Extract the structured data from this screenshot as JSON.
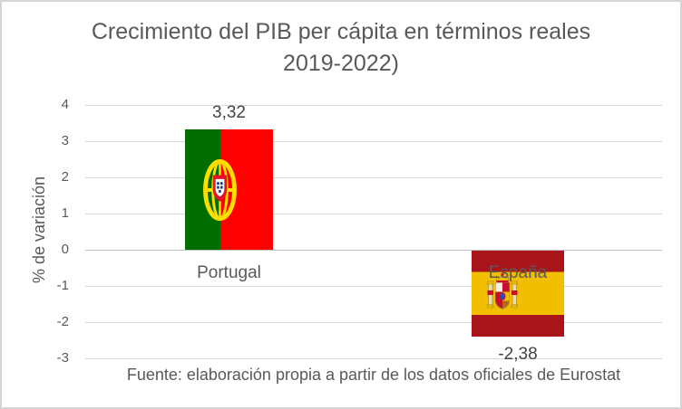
{
  "chart_data": {
    "type": "bar",
    "title_line1": "Crecimiento del PIB per cápita en términos reales",
    "title_line2": "2019-2022)",
    "ylabel": "% de variación",
    "categories": [
      "Portugal",
      "España"
    ],
    "values": [
      3.32,
      -2.38
    ],
    "value_labels": [
      "3,32",
      "-2,38"
    ],
    "yticks": [
      4,
      3,
      2,
      1,
      0,
      -1,
      -2,
      -3
    ],
    "ylim": [
      -3,
      4
    ],
    "grid": true,
    "legend": false,
    "bar_styles": [
      "portugal-flag",
      "spain-flag"
    ],
    "source": "Fuente: elaboración propia a partir de los datos oficiales de Eurostat",
    "colors": {
      "portugal_green": "#006e00",
      "portugal_red": "#fe0000",
      "spain_red": "#aa151b",
      "spain_yellow": "#f1bf00",
      "title_text": "#595959",
      "data_label_text": "#444444",
      "gridline": "#d9d9d9"
    }
  }
}
